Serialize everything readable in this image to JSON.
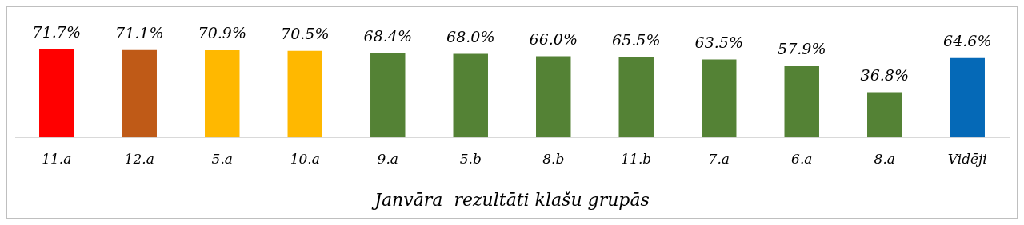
{
  "chart_data": {
    "type": "bar",
    "xlabel": "Janvāra  rezultāti klašu grupās",
    "categories": [
      "11.a",
      "12.a",
      "5.a",
      "10.a",
      "9.a",
      "5.b",
      "8.b",
      "11.b",
      "7.a",
      "6.a",
      "8.a",
      "Vidēji"
    ],
    "values": [
      71.7,
      71.1,
      70.9,
      70.5,
      68.4,
      68.0,
      66.0,
      65.5,
      63.5,
      57.9,
      36.8,
      64.6
    ],
    "colors": [
      "#ff0000",
      "#bf5a17",
      "#ffb800",
      "#ffb800",
      "#548235",
      "#548235",
      "#548235",
      "#548235",
      "#548235",
      "#548235",
      "#548235",
      "#0569b7"
    ],
    "value_labels": [
      "71.7%",
      "71.1%",
      "70.9%",
      "70.5%",
      "68.4%",
      "68.0%",
      "66.0%",
      "65.5%",
      "63.5%",
      "57.9%",
      "36.8%",
      "64.6%"
    ],
    "tick_labels": "x",
    "grid": false,
    "legend": false
  }
}
